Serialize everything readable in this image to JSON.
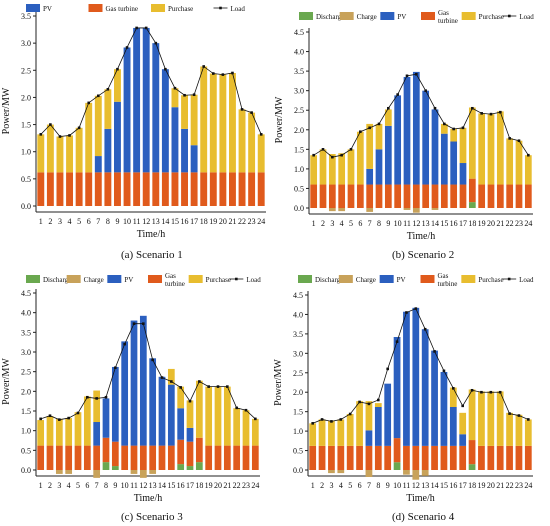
{
  "colors": {
    "Discharge": "#6aa84f",
    "Charge": "#c8a25a",
    "PV": "#2b5fbf",
    "Gas turbine": "#e05a1c",
    "Purchase": "#e8bd2f",
    "Load": "#111111"
  },
  "chart_data": [
    {
      "type": "bar",
      "caption": "(a) Scenario 1",
      "legend": [
        "PV",
        "Gas turbine",
        "Purchase",
        "Load"
      ],
      "xlabel": "Time/h",
      "ylabel": "Power/MW",
      "ylim": [
        0,
        3.5
      ],
      "yticks": [
        "0.0",
        "0.5",
        "1.0",
        "1.5",
        "2.0",
        "2.5",
        "3.0",
        "3.5"
      ],
      "categories": [
        "1",
        "2",
        "3",
        "4",
        "5",
        "6",
        "7",
        "8",
        "9",
        "10",
        "11",
        "12",
        "13",
        "14",
        "15",
        "16",
        "17",
        "18",
        "19",
        "20",
        "21",
        "22",
        "23",
        "24"
      ],
      "series": [
        {
          "name": "Gas turbine",
          "values": [
            0.62,
            0.62,
            0.62,
            0.62,
            0.62,
            0.62,
            0.62,
            0.62,
            0.62,
            0.62,
            0.62,
            0.62,
            0.62,
            0.62,
            0.62,
            0.62,
            0.62,
            0.62,
            0.62,
            0.62,
            0.62,
            0.62,
            0.62,
            0.62
          ]
        },
        {
          "name": "PV",
          "values": [
            0,
            0,
            0,
            0,
            0,
            0,
            0.3,
            0.8,
            1.3,
            2.3,
            2.66,
            2.66,
            2.38,
            1.9,
            1.2,
            0.8,
            0.5,
            0,
            0,
            0,
            0,
            0,
            0,
            0
          ]
        },
        {
          "name": "Purchase",
          "values": [
            0.7,
            0.88,
            0.66,
            0.68,
            0.82,
            1.28,
            1.11,
            0.73,
            0.6,
            0,
            0,
            0,
            0,
            0,
            0.35,
            0.62,
            0.93,
            1.95,
            1.82,
            1.8,
            1.83,
            1.16,
            1.1,
            0.7
          ]
        },
        {
          "name": "Load",
          "values": [
            1.32,
            1.5,
            1.28,
            1.3,
            1.44,
            1.9,
            2.03,
            2.15,
            2.52,
            2.92,
            3.28,
            3.28,
            3.0,
            2.52,
            2.17,
            2.04,
            2.05,
            2.57,
            2.44,
            2.42,
            2.45,
            1.78,
            1.72,
            1.32
          ]
        }
      ]
    },
    {
      "type": "bar",
      "caption": "(b) Scenario 2",
      "legend": [
        "Discharge",
        "Charge",
        "PV",
        "Gas turbine",
        "Purchase",
        "Load"
      ],
      "xlabel": "Time/h",
      "ylabel": "Power/MW",
      "ylim": [
        0,
        4.5
      ],
      "yticks": [
        "0.0",
        "0.5",
        "1.0",
        "1.5",
        "2.0",
        "2.5",
        "3.0",
        "3.5",
        "4.0",
        "4.5"
      ],
      "categories": [
        "1",
        "2",
        "3",
        "4",
        "5",
        "6",
        "7",
        "8",
        "9",
        "10",
        "11",
        "12",
        "13",
        "14",
        "15",
        "16",
        "17",
        "18",
        "19",
        "20",
        "21",
        "22",
        "23",
        "24"
      ],
      "series": [
        {
          "name": "Discharge",
          "values": [
            0,
            0,
            0,
            0,
            0,
            0,
            0,
            0,
            0,
            0,
            0,
            0,
            0,
            0,
            0,
            0,
            0,
            0.15,
            0,
            0,
            0,
            0,
            0,
            0
          ]
        },
        {
          "name": "Charge",
          "values": [
            0,
            0,
            -0.08,
            -0.08,
            0,
            0,
            -0.1,
            0,
            0,
            0,
            -0.05,
            -0.12,
            0,
            -0.05,
            0,
            0,
            0,
            0,
            0,
            0,
            0,
            0,
            0,
            0
          ]
        },
        {
          "name": "Gas turbine",
          "values": [
            0.6,
            0.6,
            0.6,
            0.6,
            0.6,
            0.6,
            0.6,
            0.6,
            0.6,
            0.6,
            0.6,
            0.6,
            0.6,
            0.6,
            0.6,
            0.6,
            0.6,
            0.6,
            0.6,
            0.6,
            0.6,
            0.6,
            0.6,
            0.6
          ]
        },
        {
          "name": "PV",
          "values": [
            0,
            0,
            0,
            0,
            0,
            0,
            0.4,
            0.9,
            1.5,
            2.28,
            2.75,
            2.88,
            2.4,
            1.92,
            1.3,
            1.1,
            0.55,
            0,
            0,
            0,
            0,
            0,
            0,
            0
          ]
        },
        {
          "name": "Purchase",
          "values": [
            0.75,
            0.9,
            0.78,
            0.8,
            0.9,
            1.35,
            1.15,
            0.65,
            0.42,
            0,
            0,
            0,
            0,
            0,
            0.25,
            0.32,
            0.9,
            1.82,
            1.82,
            1.8,
            1.87,
            1.18,
            1.12,
            0.75
          ]
        },
        {
          "name": "Load",
          "values": [
            1.35,
            1.5,
            1.3,
            1.35,
            1.5,
            1.95,
            2.05,
            2.15,
            2.55,
            2.9,
            3.38,
            3.42,
            3.0,
            2.55,
            2.15,
            2.02,
            2.05,
            2.55,
            2.42,
            2.4,
            2.45,
            1.78,
            1.72,
            1.35
          ]
        }
      ]
    },
    {
      "type": "bar",
      "caption": "(c) Scenario 3",
      "legend": [
        "Discharge",
        "Charge",
        "PV",
        "Gas turbine",
        "Purchase",
        "Load"
      ],
      "xlabel": "Time/h",
      "ylabel": "Power/MW",
      "ylim": [
        0,
        4.5
      ],
      "yticks": [
        "0.0",
        "0.5",
        "1.0",
        "1.5",
        "2.0",
        "2.5",
        "3.0",
        "3.5",
        "4.0",
        "4.5"
      ],
      "categories": [
        "1",
        "2",
        "3",
        "4",
        "5",
        "6",
        "7",
        "8",
        "9",
        "10",
        "11",
        "12",
        "13",
        "14",
        "15",
        "16",
        "17",
        "18",
        "19",
        "20",
        "21",
        "22",
        "23",
        "24"
      ],
      "series": [
        {
          "name": "Discharge",
          "values": [
            0,
            0,
            0,
            0,
            0,
            0,
            0,
            0.2,
            0.1,
            0,
            0,
            0,
            0,
            0,
            0,
            0.15,
            0.1,
            0.2,
            0,
            0,
            0,
            0,
            0,
            0
          ]
        },
        {
          "name": "Charge",
          "values": [
            0,
            0,
            -0.1,
            -0.1,
            0,
            0,
            -0.2,
            0,
            0,
            0,
            -0.1,
            -0.2,
            -0.1,
            0,
            0,
            0,
            0,
            0,
            0,
            0,
            0,
            0,
            0,
            0
          ]
        },
        {
          "name": "Gas turbine",
          "values": [
            0.62,
            0.62,
            0.62,
            0.62,
            0.62,
            0.62,
            0.62,
            0.62,
            0.62,
            0.62,
            0.62,
            0.62,
            0.62,
            0.62,
            0.62,
            0.62,
            0.62,
            0.62,
            0.62,
            0.62,
            0.62,
            0.62,
            0.62,
            0.62
          ]
        },
        {
          "name": "PV",
          "values": [
            0,
            0,
            0,
            0,
            0,
            0,
            0.6,
            1.0,
            1.9,
            2.65,
            3.18,
            3.3,
            2.22,
            1.75,
            1.55,
            0.8,
            0.35,
            0,
            0,
            0,
            0,
            0,
            0,
            0
          ]
        },
        {
          "name": "Purchase",
          "values": [
            0.65,
            0.75,
            0.68,
            0.7,
            0.85,
            1.25,
            0.8,
            0,
            0,
            0,
            0,
            0,
            0,
            0,
            0.4,
            0.55,
            0.7,
            1.45,
            1.5,
            1.5,
            1.5,
            0.95,
            0.9,
            0.68
          ]
        },
        {
          "name": "Load",
          "values": [
            1.3,
            1.38,
            1.28,
            1.32,
            1.45,
            1.85,
            1.82,
            1.85,
            2.6,
            3.2,
            3.72,
            3.72,
            2.8,
            2.35,
            2.25,
            2.1,
            1.75,
            2.25,
            2.12,
            2.12,
            2.12,
            1.58,
            1.52,
            1.3
          ]
        }
      ]
    },
    {
      "type": "bar",
      "caption": "(d) Scenario 4",
      "legend": [
        "Discharge",
        "Charge",
        "PV",
        "Gas turbine",
        "Purchase",
        "Load"
      ],
      "xlabel": "Time/h",
      "ylabel": "Power/MW",
      "ylim": [
        0,
        4.5
      ],
      "yticks": [
        "0.0",
        "0.5",
        "1.0",
        "1.5",
        "2.0",
        "2.5",
        "3.0",
        "3.5",
        "4.0",
        "4.5"
      ],
      "categories": [
        "1",
        "2",
        "3",
        "4",
        "5",
        "6",
        "7",
        "8",
        "9",
        "10",
        "11",
        "12",
        "13",
        "14",
        "15",
        "16",
        "17",
        "18",
        "19",
        "20",
        "21",
        "22",
        "23",
        "24"
      ],
      "series": [
        {
          "name": "Discharge",
          "values": [
            0,
            0,
            0,
            0,
            0,
            0,
            0,
            0,
            0,
            0.2,
            0,
            0,
            0,
            0,
            0,
            0,
            0,
            0.15,
            0,
            0,
            0,
            0,
            0,
            0
          ]
        },
        {
          "name": "Charge",
          "values": [
            0,
            0,
            -0.08,
            -0.08,
            0,
            0,
            -0.18,
            0,
            0,
            0,
            -0.12,
            -0.25,
            -0.15,
            0,
            0,
            0,
            0,
            0,
            0,
            0,
            0,
            0,
            0,
            0
          ]
        },
        {
          "name": "Gas turbine",
          "values": [
            0.62,
            0.62,
            0.62,
            0.62,
            0.62,
            0.62,
            0.62,
            0.62,
            0.62,
            0.62,
            0.62,
            0.62,
            0.62,
            0.62,
            0.62,
            0.62,
            0.62,
            0.62,
            0.62,
            0.62,
            0.62,
            0.62,
            0.62,
            0.62
          ]
        },
        {
          "name": "PV",
          "values": [
            0,
            0,
            0,
            0,
            0,
            0,
            0.4,
            1.0,
            1.6,
            2.6,
            3.45,
            3.55,
            3.0,
            2.45,
            1.9,
            1.0,
            0.3,
            0,
            0,
            0,
            0,
            0,
            0,
            0
          ]
        },
        {
          "name": "Purchase",
          "values": [
            0.58,
            0.68,
            0.65,
            0.68,
            0.82,
            1.15,
            0.75,
            0.1,
            0,
            0,
            0,
            0,
            0,
            0,
            0,
            0.5,
            0.55,
            1.3,
            1.4,
            1.4,
            1.4,
            0.85,
            0.8,
            0.68
          ]
        },
        {
          "name": "Load",
          "values": [
            1.2,
            1.3,
            1.25,
            1.3,
            1.44,
            1.75,
            1.7,
            1.8,
            2.6,
            3.3,
            4.05,
            4.15,
            3.62,
            3.05,
            2.55,
            2.1,
            1.65,
            2.05,
            2.0,
            2.0,
            2.0,
            1.45,
            1.4,
            1.3
          ]
        }
      ]
    }
  ]
}
